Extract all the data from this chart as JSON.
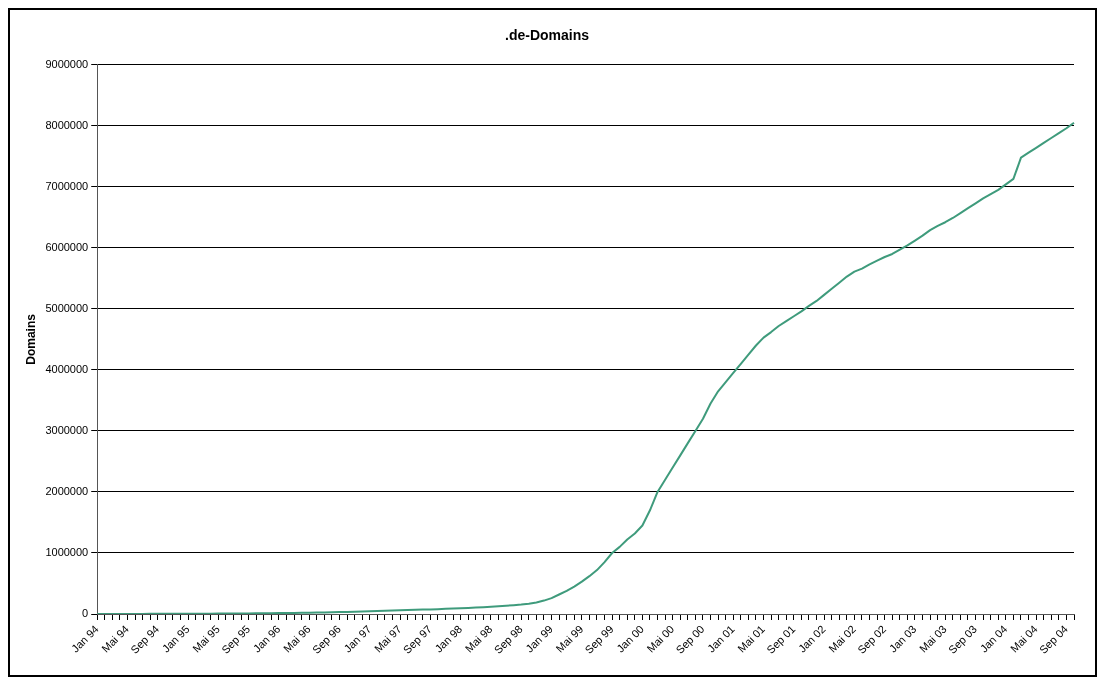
{
  "chart_data": {
    "type": "line",
    "title": ".de-Domains",
    "ylabel": "Domains",
    "categories": [
      "Jan 94",
      null,
      null,
      null,
      "Mai 94",
      null,
      null,
      null,
      "Sep 94",
      null,
      null,
      null,
      "Jan 95",
      null,
      null,
      null,
      "Mai 95",
      null,
      null,
      null,
      "Sep 95",
      null,
      null,
      null,
      "Jan 96",
      null,
      null,
      null,
      "Mai 96",
      null,
      null,
      null,
      "Sep 96",
      null,
      null,
      null,
      "Jan 97",
      null,
      null,
      null,
      "Mai 97",
      null,
      null,
      null,
      "Sep 97",
      null,
      null,
      null,
      "Jan 98",
      null,
      null,
      null,
      "Mai 98",
      null,
      null,
      null,
      "Sep 98",
      null,
      null,
      null,
      "Jan 99",
      null,
      null,
      null,
      "Mai 99",
      null,
      null,
      null,
      "Sep 99",
      null,
      null,
      null,
      "Jan 00",
      null,
      null,
      null,
      "Mai 00",
      null,
      null,
      null,
      "Sep 00",
      null,
      null,
      null,
      "Jan 01",
      null,
      null,
      null,
      "Mai 01",
      null,
      null,
      null,
      "Sep 01",
      null,
      null,
      null,
      "Jan 02",
      null,
      null,
      null,
      "Mai 02",
      null,
      null,
      null,
      "Sep 02",
      null,
      null,
      null,
      "Jan 03",
      null,
      null,
      null,
      "Mai 03",
      null,
      null,
      null,
      "Sep 03",
      null,
      null,
      null,
      "Jan 04",
      null,
      null,
      null,
      "Mai 04",
      null,
      null,
      null,
      "Sep 04",
      null
    ],
    "series": [
      {
        "color": "#3f9b7c",
        "values": [
          1000,
          1100,
          1300,
          1500,
          1700,
          1900,
          2200,
          2500,
          2800,
          3200,
          3600,
          4000,
          4500,
          5000,
          5600,
          6200,
          6900,
          7600,
          8400,
          9300,
          10200,
          11200,
          12300,
          13500,
          15000,
          16500,
          18000,
          19800,
          21700,
          23800,
          26000,
          28500,
          31000,
          34000,
          37000,
          40000,
          44000,
          48000,
          52000,
          56000,
          60000,
          64000,
          68000,
          72000,
          76000,
          80000,
          85000,
          90000,
          95000,
          100000,
          106000,
          112000,
          120000,
          128000,
          136000,
          145000,
          155000,
          170000,
          190000,
          220000,
          260000,
          320000,
          380000,
          450000,
          530000,
          620000,
          720000,
          850000,
          1000000,
          1100000,
          1220000,
          1320000,
          1450000,
          1700000,
          2000000,
          2200000,
          2400000,
          2600000,
          2800000,
          3000000,
          3200000,
          3450000,
          3650000,
          3800000,
          3950000,
          4100000,
          4250000,
          4400000,
          4530000,
          4620000,
          4720000,
          4800000,
          4880000,
          4960000,
          5050000,
          5130000,
          5230000,
          5330000,
          5430000,
          5530000,
          5610000,
          5660000,
          5730000,
          5790000,
          5850000,
          5900000,
          5970000,
          6040000,
          6120000,
          6200000,
          6290000,
          6360000,
          6420000,
          6490000,
          6570000,
          6650000,
          6730000,
          6810000,
          6880000,
          6950000,
          7040000,
          7130000,
          7480000,
          7560000,
          7640000,
          7720000,
          7800000,
          7880000,
          7960000,
          8050000
        ]
      }
    ],
    "ylim": [
      0,
      9000000
    ],
    "yticks": [
      0,
      1000000,
      2000000,
      3000000,
      4000000,
      5000000,
      6000000,
      7000000,
      8000000,
      9000000
    ],
    "grid": "y",
    "legend": false
  }
}
